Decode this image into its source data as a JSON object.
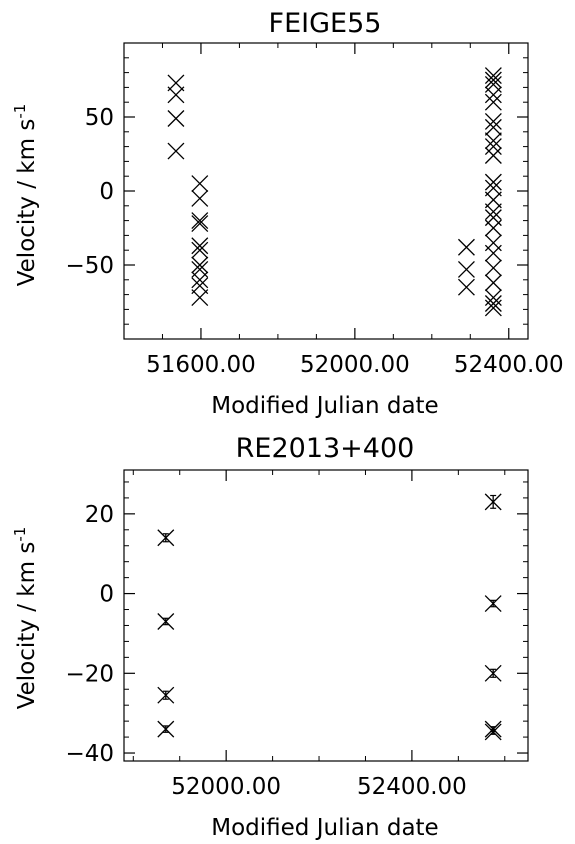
{
  "chart_data": [
    {
      "type": "scatter",
      "title": "FEIGE55",
      "xlabel": "Modified Julian date",
      "ylabel": "Velocity / km s",
      "ylabel_unit_exponent": "-1",
      "marker": "x-cross",
      "xlim": [
        51400,
        52450
      ],
      "ylim": [
        -100,
        100
      ],
      "xticks": [
        51600,
        52000,
        52400
      ],
      "xtick_labels": [
        "51600.00",
        "52000.00",
        "52400.00"
      ],
      "yticks": [
        -50,
        0,
        50
      ],
      "ytick_labels": [
        "−50",
        "0",
        "50"
      ],
      "grid": false,
      "points": [
        {
          "x": 51535,
          "y": 73
        },
        {
          "x": 51535,
          "y": 65
        },
        {
          "x": 51535,
          "y": 49
        },
        {
          "x": 51535,
          "y": 27
        },
        {
          "x": 51597,
          "y": 5
        },
        {
          "x": 51597,
          "y": -5
        },
        {
          "x": 51597,
          "y": -20
        },
        {
          "x": 51597,
          "y": -22
        },
        {
          "x": 51597,
          "y": -37
        },
        {
          "x": 51597,
          "y": -40
        },
        {
          "x": 51597,
          "y": -50
        },
        {
          "x": 51597,
          "y": -53
        },
        {
          "x": 51597,
          "y": -60
        },
        {
          "x": 51597,
          "y": -64
        },
        {
          "x": 51597,
          "y": -72
        },
        {
          "x": 52290,
          "y": -38
        },
        {
          "x": 52290,
          "y": -53
        },
        {
          "x": 52290,
          "y": -65
        },
        {
          "x": 52360,
          "y": 78
        },
        {
          "x": 52360,
          "y": 75
        },
        {
          "x": 52360,
          "y": 72
        },
        {
          "x": 52360,
          "y": 65
        },
        {
          "x": 52360,
          "y": 60
        },
        {
          "x": 52360,
          "y": 47
        },
        {
          "x": 52360,
          "y": 43
        },
        {
          "x": 52360,
          "y": 34
        },
        {
          "x": 52360,
          "y": 30
        },
        {
          "x": 52360,
          "y": 24
        },
        {
          "x": 52360,
          "y": 6
        },
        {
          "x": 52360,
          "y": 2
        },
        {
          "x": 52360,
          "y": -6
        },
        {
          "x": 52360,
          "y": -14
        },
        {
          "x": 52360,
          "y": -18
        },
        {
          "x": 52360,
          "y": -25
        },
        {
          "x": 52360,
          "y": -35
        },
        {
          "x": 52360,
          "y": -42
        },
        {
          "x": 52360,
          "y": -52
        },
        {
          "x": 52360,
          "y": -62
        },
        {
          "x": 52360,
          "y": -72
        },
        {
          "x": 52360,
          "y": -76
        },
        {
          "x": 52360,
          "y": -79
        }
      ]
    },
    {
      "type": "scatter",
      "title": "RE2013+400",
      "xlabel": "Modified Julian date",
      "ylabel": "Velocity / km s",
      "ylabel_unit_exponent": "-1",
      "marker": "x-cross with error bars",
      "xlim": [
        51780,
        52650
      ],
      "ylim": [
        -42,
        31
      ],
      "xticks": [
        52000,
        52400
      ],
      "xtick_labels": [
        "52000.00",
        "52400.00"
      ],
      "yticks": [
        -40,
        -20,
        0,
        20
      ],
      "ytick_labels": [
        "−40",
        "−20",
        "0",
        "20"
      ],
      "grid": false,
      "points": [
        {
          "x": 51870,
          "y": 14,
          "err": 1.0
        },
        {
          "x": 51870,
          "y": -7,
          "err": 0.8
        },
        {
          "x": 51870,
          "y": -25.5,
          "err": 1.0
        },
        {
          "x": 51870,
          "y": -34,
          "err": 0.8
        },
        {
          "x": 52575,
          "y": 23,
          "err": 1.6
        },
        {
          "x": 52575,
          "y": -2.5,
          "err": 0.8
        },
        {
          "x": 52575,
          "y": -20,
          "err": 1.0
        },
        {
          "x": 52575,
          "y": -34,
          "err": 0.6
        },
        {
          "x": 52575,
          "y": -34.7,
          "err": 0.6
        }
      ]
    }
  ]
}
